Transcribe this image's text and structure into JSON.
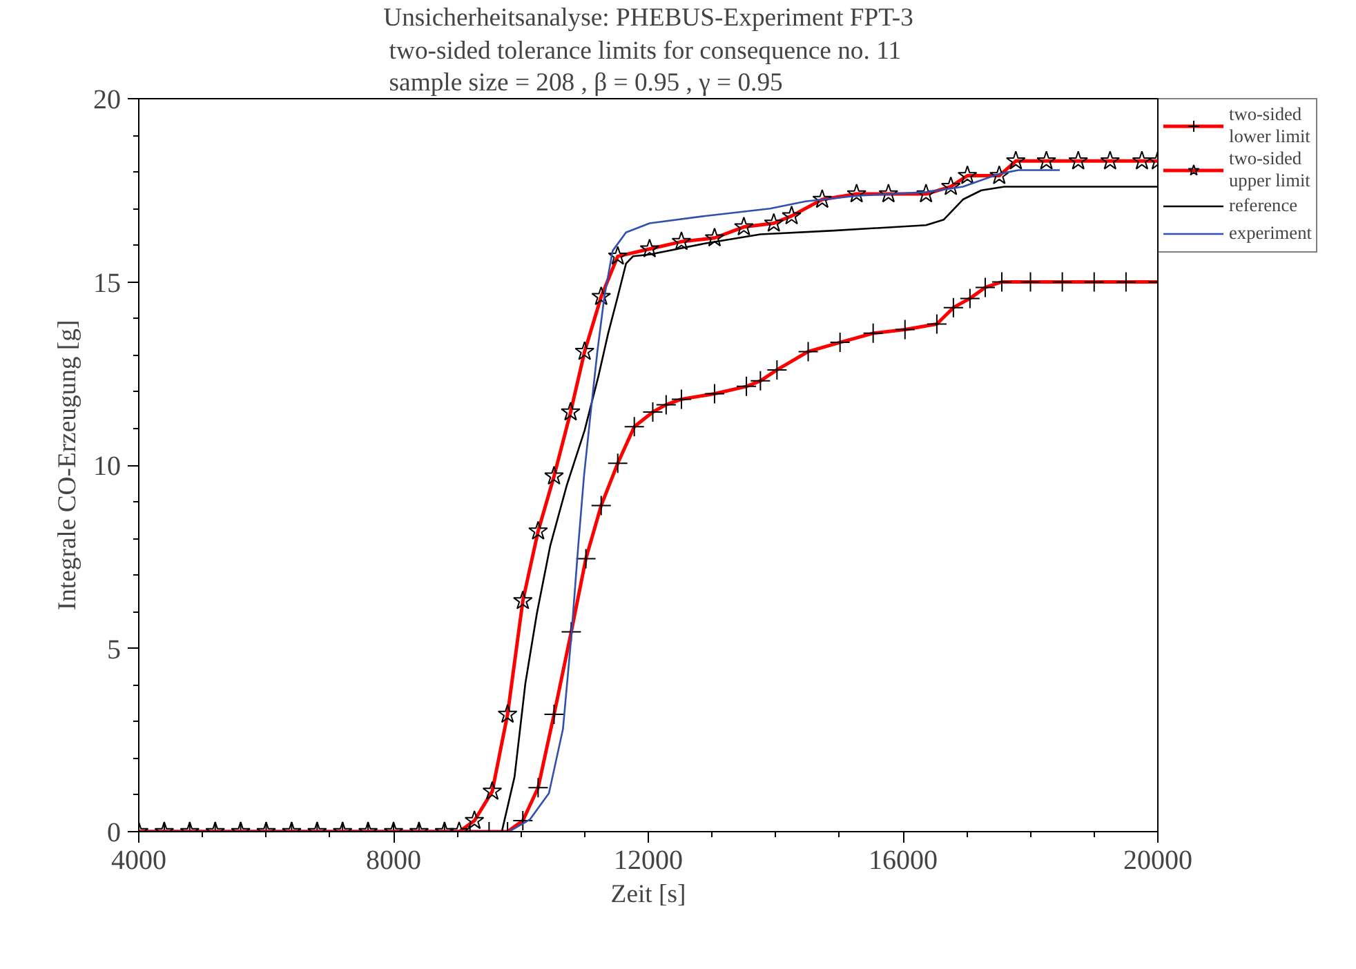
{
  "chart_data": {
    "type": "line",
    "title": "Unsicherheitsanalyse: PHEBUS-Experiment FPT-3",
    "subtitle": "two-sided tolerance limits for consequence no.  11\nsample size =  208 ,  β =  0.95 , γ =  0.95",
    "xlabel": "Zeit [s]",
    "ylabel": "Integrale CO-Erzeugung [g]",
    "xlim": [
      4000,
      20000
    ],
    "ylim": [
      0,
      20
    ],
    "xticks": [
      4000,
      8000,
      12000,
      16000,
      20000
    ],
    "yticks": [
      0,
      5,
      10,
      15,
      20
    ],
    "grid": false,
    "legend": "top right",
    "series": [
      {
        "name": "two-sided\nlower limit",
        "color": "#ff0000",
        "marker": "cross",
        "x": [
          4000,
          4400,
          4800,
          5200,
          5600,
          6000,
          6400,
          6800,
          7200,
          7600,
          8000,
          8400,
          8800,
          9200,
          9500,
          9790,
          10030,
          10270,
          10520,
          10790,
          11020,
          11260,
          11520,
          11780,
          12070,
          12280,
          12520,
          13040,
          13540,
          13760,
          14020,
          14510,
          15010,
          15530,
          16030,
          16530,
          16790,
          17050,
          17290,
          17550,
          18000,
          18500,
          19000,
          19500,
          20000
        ],
        "values": [
          0,
          0,
          0,
          0,
          0,
          0,
          0,
          0,
          0,
          0,
          0,
          0,
          0,
          0,
          0,
          0,
          0.3,
          1.2,
          3.2,
          5.45,
          7.45,
          8.9,
          10.05,
          11.05,
          11.45,
          11.65,
          11.8,
          11.95,
          12.15,
          12.3,
          12.6,
          13.1,
          13.35,
          13.6,
          13.7,
          13.85,
          14.3,
          14.55,
          14.85,
          15.0,
          15.0,
          15.0,
          15.0,
          15.0,
          15.0
        ]
      },
      {
        "name": "two-sided\nupper limit",
        "color": "#ff0000",
        "marker": "star",
        "x": [
          4000,
          4400,
          4800,
          5200,
          5600,
          6000,
          6400,
          6800,
          7200,
          7600,
          8000,
          8400,
          8800,
          9030,
          9270,
          9550,
          9790,
          10030,
          10270,
          10520,
          10780,
          11000,
          11260,
          11520,
          12020,
          12520,
          13040,
          13500,
          13970,
          14250,
          14730,
          15270,
          15770,
          16360,
          16750,
          17010,
          17510,
          17770,
          18250,
          18750,
          19250,
          19750,
          20000
        ],
        "values": [
          0,
          0,
          0,
          0,
          0,
          0,
          0,
          0,
          0,
          0,
          0,
          0,
          0,
          0,
          0.3,
          1.1,
          3.2,
          6.3,
          8.2,
          9.7,
          11.45,
          13.1,
          14.6,
          15.7,
          15.9,
          16.1,
          16.2,
          16.5,
          16.6,
          16.8,
          17.25,
          17.4,
          17.4,
          17.4,
          17.6,
          17.9,
          17.9,
          18.3,
          18.3,
          18.3,
          18.3,
          18.3,
          18.3
        ]
      },
      {
        "name": "reference",
        "color": "#000000",
        "marker": "none",
        "x": [
          4000,
          9700,
          9900,
          10070,
          10250,
          10460,
          10720,
          11000,
          11220,
          11370,
          11520,
          11650,
          11760,
          12020,
          12890,
          13760,
          14910,
          16360,
          16640,
          16940,
          17230,
          17590,
          20000
        ],
        "values": [
          0,
          0,
          1.5,
          4.05,
          5.95,
          7.8,
          9.45,
          10.95,
          12.45,
          13.6,
          14.6,
          15.5,
          15.7,
          15.75,
          16.05,
          16.3,
          16.4,
          16.55,
          16.7,
          17.25,
          17.5,
          17.6,
          17.6
        ]
      },
      {
        "name": "experiment",
        "color": "#3050b0",
        "marker": "none",
        "x": [
          4000,
          9810,
          10140,
          10440,
          10660,
          10790,
          10900,
          10990,
          11090,
          11200,
          11310,
          11440,
          11650,
          12020,
          12890,
          13910,
          14470,
          15270,
          16360,
          16940,
          17510,
          17810,
          18460
        ],
        "values": [
          0,
          0,
          0.33,
          1.05,
          2.8,
          5.3,
          7.8,
          9.7,
          11.35,
          13.1,
          14.6,
          15.85,
          16.35,
          16.6,
          16.8,
          17.0,
          17.2,
          17.35,
          17.45,
          17.6,
          17.95,
          18.05,
          18.05
        ]
      }
    ]
  }
}
